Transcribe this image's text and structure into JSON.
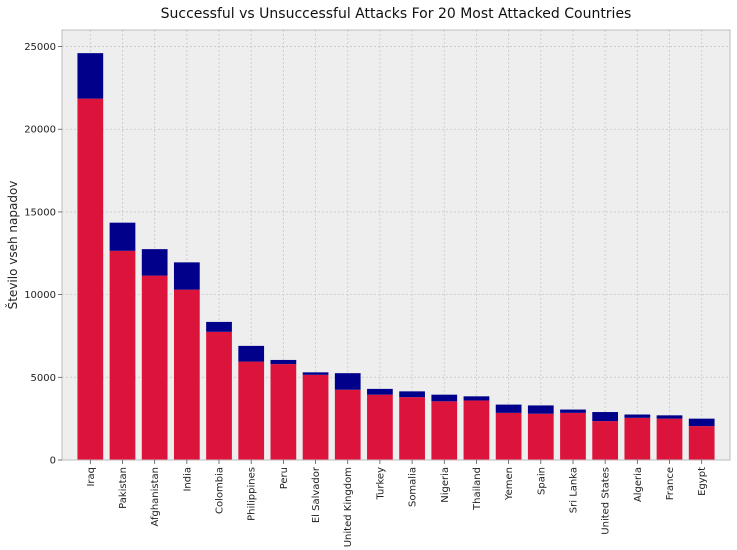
{
  "chart_data": {
    "type": "bar",
    "stacked": true,
    "title": "Successful vs Unsuccessful Attacks For 20 Most Attacked Countries",
    "xlabel": "",
    "ylabel": "Število vseh napadov",
    "ylim": [
      0,
      26000
    ],
    "yticks": [
      0,
      5000,
      10000,
      15000,
      20000,
      25000
    ],
    "grid": true,
    "categories": [
      "Iraq",
      "Pakistan",
      "Afghanistan",
      "India",
      "Colombia",
      "Philippines",
      "Peru",
      "El Salvador",
      "United Kingdom",
      "Turkey",
      "Somalia",
      "Nigeria",
      "Thailand",
      "Yemen",
      "Spain",
      "Sri Lanka",
      "United States",
      "Algeria",
      "France",
      "Egypt"
    ],
    "series": [
      {
        "color": "#dc143c",
        "values": [
          21850,
          12650,
          11150,
          10300,
          7750,
          5950,
          5800,
          5150,
          4250,
          3950,
          3800,
          3550,
          3600,
          2850,
          2800,
          2850,
          2350,
          2550,
          2500,
          2050
        ]
      },
      {
        "color": "#00008b",
        "values": [
          2750,
          1700,
          1600,
          1650,
          600,
          950,
          250,
          150,
          1000,
          350,
          350,
          400,
          250,
          500,
          500,
          200,
          550,
          200,
          200,
          450
        ]
      }
    ],
    "colors": {
      "background": "#eeeeee",
      "grid": "#c8c8c8",
      "frame": "#bcbcbc"
    }
  }
}
